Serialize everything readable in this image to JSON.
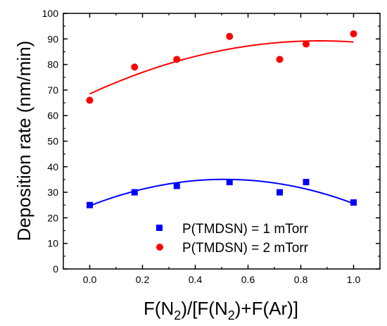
{
  "chart_data": {
    "type": "scatter",
    "title": "",
    "xlabel": {
      "pre": "F(N",
      "sub1": "2",
      "mid": ")/[F(N",
      "sub2": "2",
      "post": ")+F(Ar)]"
    },
    "ylabel": "Deposition rate (nm/min)",
    "xlim": [
      -0.1,
      1.1
    ],
    "ylim": [
      0,
      100
    ],
    "xticks": [
      "0.0",
      "0.2",
      "0.4",
      "0.6",
      "0.8",
      "1.0"
    ],
    "yticks": [
      "0",
      "10",
      "20",
      "30",
      "40",
      "50",
      "60",
      "70",
      "80",
      "90",
      "100"
    ],
    "grid": false,
    "legend_position": "bottom-right",
    "series": [
      {
        "name": "P(TMDSN) = 1 mTorr",
        "marker": "square",
        "color": "#0000ff",
        "x": [
          0.0,
          0.17,
          0.33,
          0.53,
          0.72,
          0.82,
          1.0
        ],
        "y": [
          25,
          30,
          32.5,
          34,
          30,
          34,
          26
        ],
        "fit": [
          24.7,
          40.5,
          -39.6
        ]
      },
      {
        "name": "P(TMDSN) = 2 mTorr",
        "marker": "circle",
        "color": "#ff0000",
        "x": [
          0.0,
          0.17,
          0.33,
          0.53,
          0.72,
          0.82,
          1.0
        ],
        "y": [
          66,
          79,
          82,
          91,
          82,
          88,
          92
        ],
        "fit": [
          68.5,
          47.6,
          -27.3
        ]
      }
    ]
  }
}
